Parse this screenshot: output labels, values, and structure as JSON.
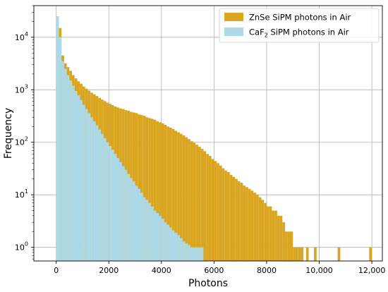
{
  "chart_data": {
    "type": "bar",
    "subtype": "overlaid-histogram",
    "xlabel": "Photons",
    "ylabel": "Frequency",
    "xlim": [
      -850,
      12400
    ],
    "ylim": [
      0.55,
      40000
    ],
    "yscale": "log",
    "grid": true,
    "legend_position": "top-right",
    "bin_width": 100,
    "x_ticks": [
      {
        "value": 0,
        "label": "0"
      },
      {
        "value": 2000,
        "label": "2000"
      },
      {
        "value": 4000,
        "label": "4000"
      },
      {
        "value": 6000,
        "label": "6000"
      },
      {
        "value": 8000,
        "label": "8000"
      },
      {
        "value": 10000,
        "label": "10,000"
      },
      {
        "value": 12000,
        "label": "12,000"
      }
    ],
    "y_ticks": [
      {
        "value": 1,
        "mant": "10",
        "exp": "0"
      },
      {
        "value": 10,
        "mant": "10",
        "exp": "1"
      },
      {
        "value": 100,
        "mant": "10",
        "exp": "2"
      },
      {
        "value": 1000,
        "mant": "10",
        "exp": "3"
      },
      {
        "value": 10000,
        "mant": "10",
        "exp": "4"
      }
    ],
    "series": [
      {
        "name": "ZnSe SiPM photons in Air",
        "legend_main": "ZnSe SiPM photons in Air",
        "color": "#DAA520",
        "points": [
          [
            0,
            25000
          ],
          [
            100,
            15000
          ],
          [
            200,
            4500
          ],
          [
            300,
            3200
          ],
          [
            400,
            2700
          ],
          [
            500,
            2300
          ],
          [
            600,
            1900
          ],
          [
            700,
            1650
          ],
          [
            800,
            1450
          ],
          [
            900,
            1300
          ],
          [
            1000,
            1150
          ],
          [
            1100,
            1050
          ],
          [
            1200,
            960
          ],
          [
            1300,
            880
          ],
          [
            1400,
            820
          ],
          [
            1500,
            760
          ],
          [
            1600,
            700
          ],
          [
            1700,
            650
          ],
          [
            1800,
            610
          ],
          [
            1900,
            570
          ],
          [
            2000,
            540
          ],
          [
            2100,
            510
          ],
          [
            2200,
            480
          ],
          [
            2300,
            460
          ],
          [
            2400,
            440
          ],
          [
            2500,
            430
          ],
          [
            2600,
            410
          ],
          [
            2700,
            400
          ],
          [
            2800,
            380
          ],
          [
            2900,
            370
          ],
          [
            3000,
            360
          ],
          [
            3100,
            340
          ],
          [
            3200,
            330
          ],
          [
            3300,
            320
          ],
          [
            3400,
            300
          ],
          [
            3500,
            290
          ],
          [
            3600,
            280
          ],
          [
            3700,
            270
          ],
          [
            3800,
            250
          ],
          [
            3900,
            240
          ],
          [
            4000,
            230
          ],
          [
            4100,
            215
          ],
          [
            4200,
            200
          ],
          [
            4300,
            190
          ],
          [
            4400,
            180
          ],
          [
            4500,
            165
          ],
          [
            4600,
            155
          ],
          [
            4700,
            145
          ],
          [
            4800,
            135
          ],
          [
            4900,
            125
          ],
          [
            5000,
            115
          ],
          [
            5100,
            105
          ],
          [
            5200,
            98
          ],
          [
            5300,
            90
          ],
          [
            5400,
            82
          ],
          [
            5500,
            75
          ],
          [
            5600,
            68
          ],
          [
            5700,
            60
          ],
          [
            5800,
            55
          ],
          [
            5900,
            48
          ],
          [
            6000,
            44
          ],
          [
            6100,
            40
          ],
          [
            6200,
            36
          ],
          [
            6300,
            32
          ],
          [
            6400,
            29
          ],
          [
            6500,
            27
          ],
          [
            6600,
            24
          ],
          [
            6700,
            22
          ],
          [
            6800,
            20
          ],
          [
            6900,
            18
          ],
          [
            7000,
            17
          ],
          [
            7100,
            15
          ],
          [
            7200,
            14
          ],
          [
            7300,
            13
          ],
          [
            7400,
            12
          ],
          [
            7500,
            11
          ],
          [
            7600,
            10
          ],
          [
            7700,
            9
          ],
          [
            7800,
            8
          ],
          [
            7900,
            7
          ],
          [
            8000,
            6
          ],
          [
            8100,
            6
          ],
          [
            8200,
            5
          ],
          [
            8300,
            5
          ],
          [
            8400,
            4
          ],
          [
            8500,
            4
          ],
          [
            8600,
            3
          ],
          [
            8700,
            2
          ],
          [
            8800,
            2
          ],
          [
            8900,
            2
          ],
          [
            9000,
            1
          ],
          [
            9100,
            1
          ],
          [
            9200,
            1
          ],
          [
            9300,
            1
          ],
          [
            9500,
            1
          ],
          [
            9800,
            1
          ],
          [
            10700,
            1
          ],
          [
            11900,
            1
          ]
        ]
      },
      {
        "name": "CaF2 SiPM photons in Air",
        "legend_main": "CaF",
        "legend_sub": "2",
        "legend_rest": " SiPM photons in Air",
        "color": "#ADD8E6",
        "points": [
          [
            0,
            25000
          ],
          [
            100,
            10000
          ],
          [
            200,
            3500
          ],
          [
            300,
            2500
          ],
          [
            400,
            1900
          ],
          [
            500,
            1500
          ],
          [
            600,
            1200
          ],
          [
            700,
            950
          ],
          [
            800,
            780
          ],
          [
            900,
            640
          ],
          [
            1000,
            520
          ],
          [
            1100,
            430
          ],
          [
            1200,
            360
          ],
          [
            1300,
            300
          ],
          [
            1400,
            250
          ],
          [
            1500,
            210
          ],
          [
            1600,
            175
          ],
          [
            1700,
            145
          ],
          [
            1800,
            120
          ],
          [
            1900,
            100
          ],
          [
            2000,
            85
          ],
          [
            2100,
            72
          ],
          [
            2200,
            60
          ],
          [
            2300,
            50
          ],
          [
            2400,
            42
          ],
          [
            2500,
            35
          ],
          [
            2600,
            30
          ],
          [
            2700,
            25
          ],
          [
            2800,
            21
          ],
          [
            2900,
            18
          ],
          [
            3000,
            15
          ],
          [
            3100,
            13
          ],
          [
            3200,
            11
          ],
          [
            3300,
            9
          ],
          [
            3400,
            8
          ],
          [
            3500,
            7
          ],
          [
            3600,
            6
          ],
          [
            3700,
            5
          ],
          [
            3800,
            4.5
          ],
          [
            3900,
            4
          ],
          [
            4000,
            3.5
          ],
          [
            4100,
            3
          ],
          [
            4200,
            2.7
          ],
          [
            4300,
            2.4
          ],
          [
            4400,
            2.1
          ],
          [
            4500,
            1.9
          ],
          [
            4600,
            1.7
          ],
          [
            4700,
            1.5
          ],
          [
            4800,
            1.3
          ],
          [
            4900,
            1.2
          ],
          [
            5000,
            1.1
          ],
          [
            5100,
            1
          ],
          [
            5200,
            1
          ],
          [
            5300,
            1
          ],
          [
            5400,
            1
          ],
          [
            5500,
            1
          ]
        ]
      }
    ]
  }
}
